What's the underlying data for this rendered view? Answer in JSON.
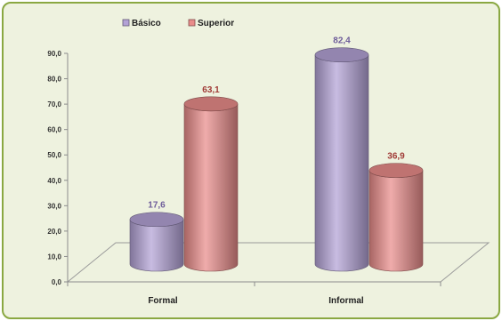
{
  "chart_data": {
    "type": "bar",
    "title": "",
    "categories": [
      "Formal",
      "Informal"
    ],
    "series": [
      {
        "name": "Básico",
        "values": [
          17.6,
          82.4
        ],
        "color": "#b3a2d6",
        "label_color": "#6e5d9a"
      },
      {
        "name": "Superior",
        "values": [
          63.1,
          36.9
        ],
        "color": "#e98c8a",
        "label_color": "#a03a36"
      }
    ],
    "data_labels": [
      [
        "17,6",
        "82,4"
      ],
      [
        "63,1",
        "36,9"
      ]
    ],
    "y_ticks": [
      "0,0",
      "10,0",
      "20,0",
      "30,0",
      "40,0",
      "50,0",
      "60,0",
      "70,0",
      "80,0",
      "90,0"
    ],
    "ylim": [
      0,
      90
    ],
    "xlabel": "",
    "ylabel": "",
    "legend": {
      "position": "top"
    },
    "style": "3d-cylinder",
    "grid": false
  },
  "colors": {
    "background": "#eef2df",
    "border": "#8aa842"
  }
}
